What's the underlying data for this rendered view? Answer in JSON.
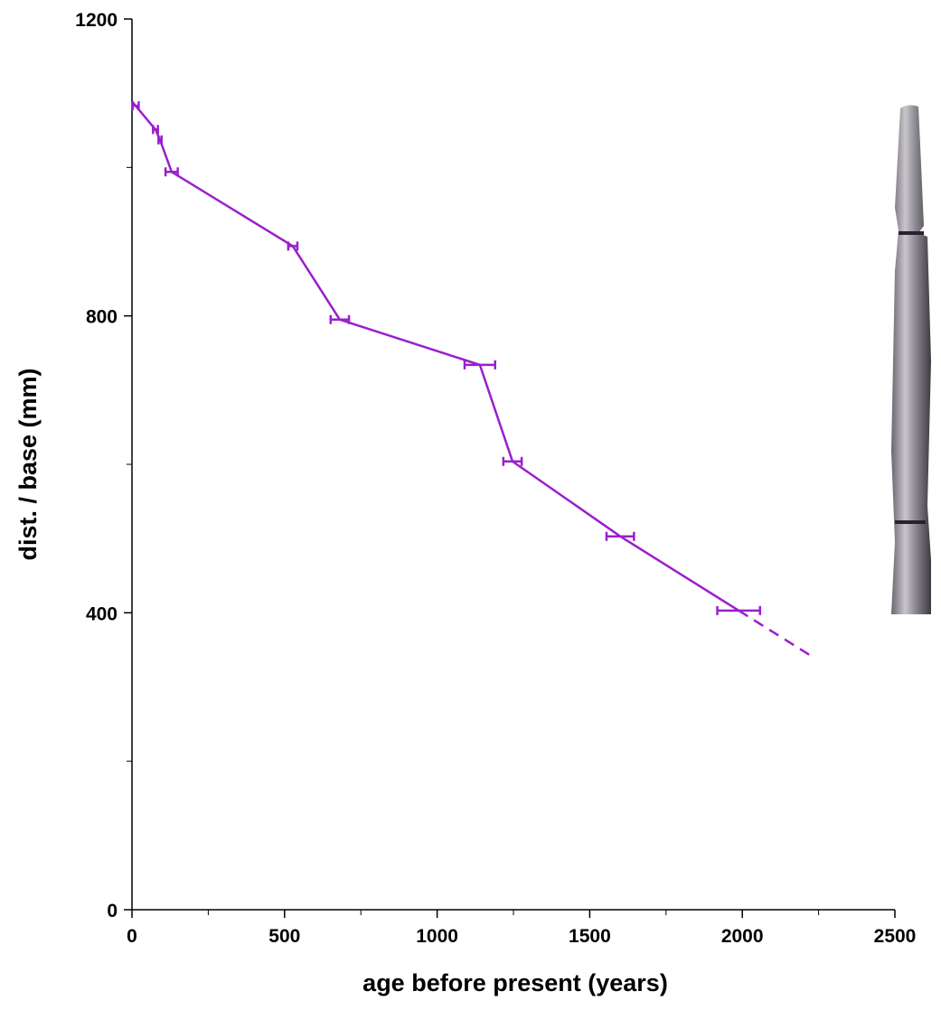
{
  "chart_data": {
    "type": "line",
    "xlabel": "age before present (years)",
    "ylabel": "dist. / base (mm)",
    "series": [
      {
        "color": "#9a1fcc",
        "style": "solid",
        "x": [
          0,
          12,
          77,
          92,
          130,
          527,
          681,
          1140,
          1247,
          1600,
          1988
        ],
        "values": [
          1089,
          1083,
          1051,
          1037,
          994,
          894,
          795,
          734,
          604,
          503,
          403
        ],
        "xerr": [
          null,
          10,
          8,
          5,
          20,
          15,
          30,
          50,
          30,
          45,
          70
        ]
      },
      {
        "color": "#9a1fcc",
        "style": "dashed",
        "x": [
          1988,
          2233
        ],
        "values": [
          403,
          340
        ]
      }
    ],
    "xlim": [
      0,
      2500
    ],
    "xticks": [
      0,
      500,
      1000,
      1500,
      2000,
      2500
    ],
    "xminorticks": [
      250,
      750,
      1250,
      1750,
      2250
    ],
    "ylim": [
      0,
      1200
    ],
    "yticks": [
      0,
      400,
      800,
      1200
    ],
    "yminorticks": [
      200,
      600,
      1000
    ],
    "grid": false
  }
}
